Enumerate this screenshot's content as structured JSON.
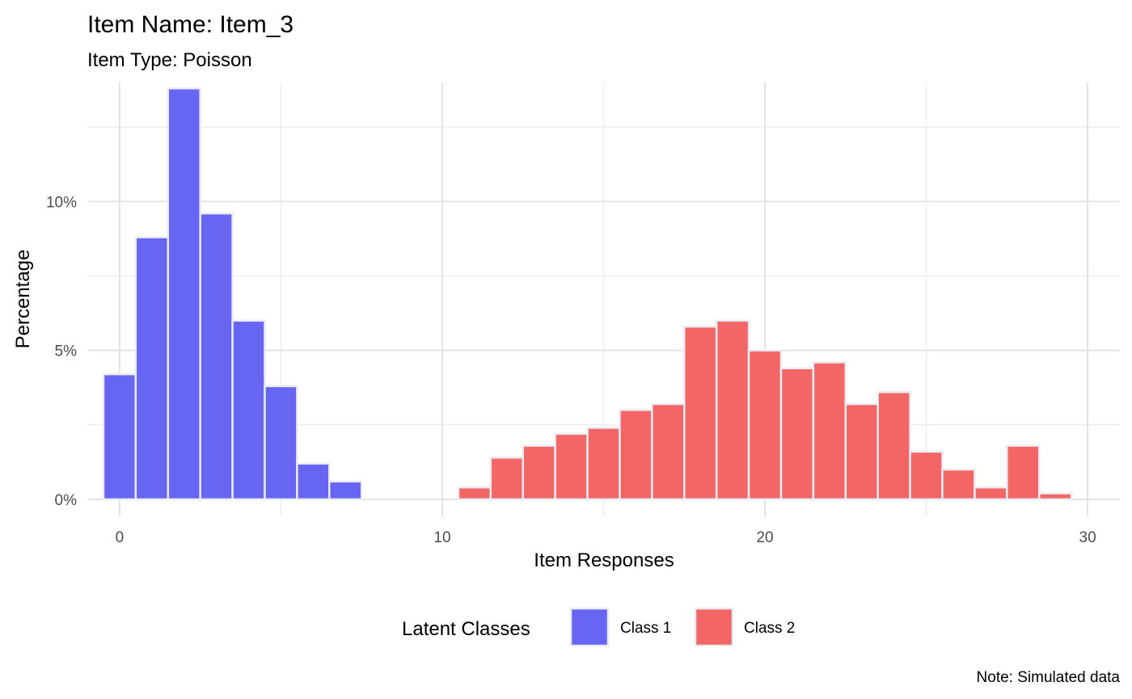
{
  "chart_data": {
    "type": "bar",
    "title": "Item Name: Item_3",
    "subtitle": "Item Type: Poisson",
    "xlabel": "Item Responses",
    "ylabel": "Percentage",
    "caption": "Note: Simulated data",
    "xlim": [
      -1,
      31
    ],
    "ylim": [
      -0.6,
      14.0
    ],
    "x_ticks": [
      0,
      10,
      20,
      30
    ],
    "x_tick_labels": [
      "0",
      "10",
      "20",
      "30"
    ],
    "y_ticks": [
      0,
      5,
      10
    ],
    "y_tick_labels": [
      "0%",
      "5%",
      "10%"
    ],
    "grid": true,
    "legend": {
      "title": "Latent Classes",
      "position": "bottom"
    },
    "series": [
      {
        "name": "Class 1",
        "color": "#6666f2",
        "x": [
          0,
          1,
          2,
          3,
          4,
          5,
          6,
          7
        ],
        "values": [
          4.2,
          8.8,
          13.8,
          9.6,
          6.0,
          3.8,
          1.2,
          0.6
        ]
      },
      {
        "name": "Class 2",
        "color": "#f26666",
        "x": [
          11,
          12,
          13,
          14,
          15,
          16,
          17,
          18,
          19,
          20,
          21,
          22,
          23,
          24,
          25,
          26,
          27,
          28,
          29
        ],
        "values": [
          0.4,
          1.4,
          1.8,
          2.2,
          2.4,
          3.0,
          3.2,
          5.8,
          6.0,
          5.0,
          4.4,
          4.6,
          3.2,
          3.6,
          1.6,
          1.0,
          0.4,
          1.8,
          0.2
        ]
      }
    ]
  }
}
